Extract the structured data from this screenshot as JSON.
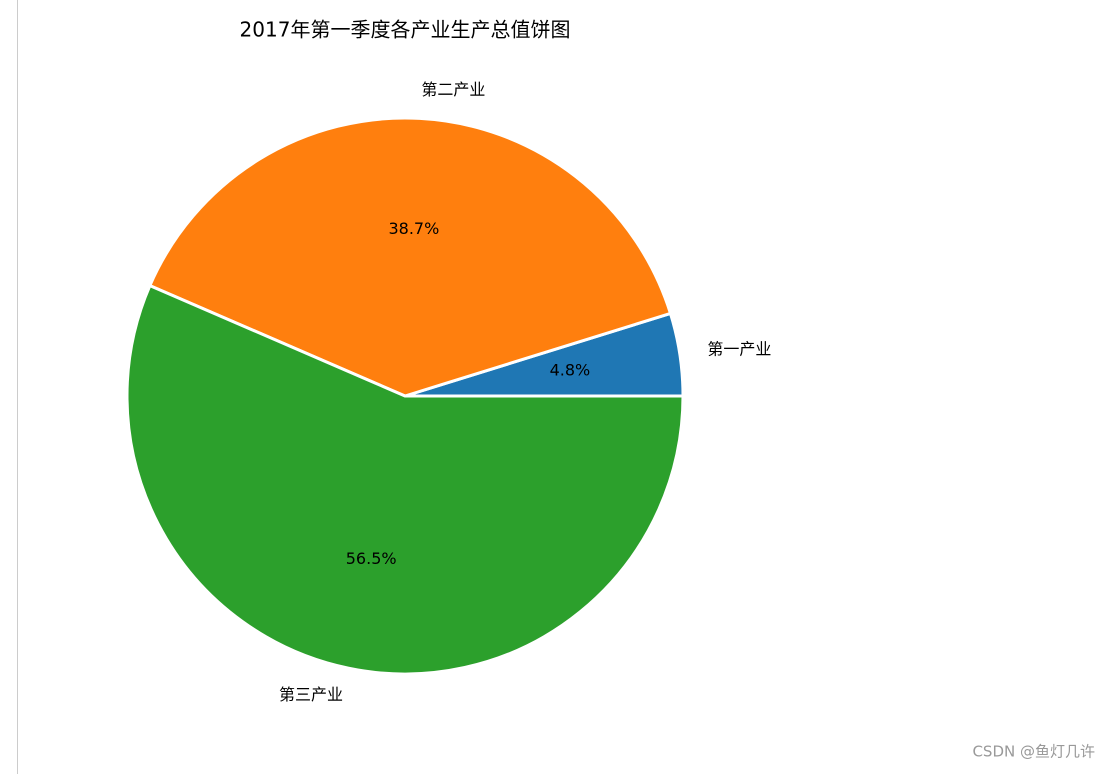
{
  "chart_data": {
    "type": "pie",
    "title": "2017年第一季度各产业生产总值饼图",
    "categories": [
      "第一产业",
      "第二产业",
      "第三产业"
    ],
    "values": [
      4.8,
      38.7,
      56.5
    ],
    "value_labels": [
      "4.8%",
      "38.7%",
      "56.5%"
    ],
    "colors": [
      "#1f77b4",
      "#ff7f0e",
      "#2ca02c"
    ]
  },
  "watermark": "CSDN @鱼灯几许"
}
